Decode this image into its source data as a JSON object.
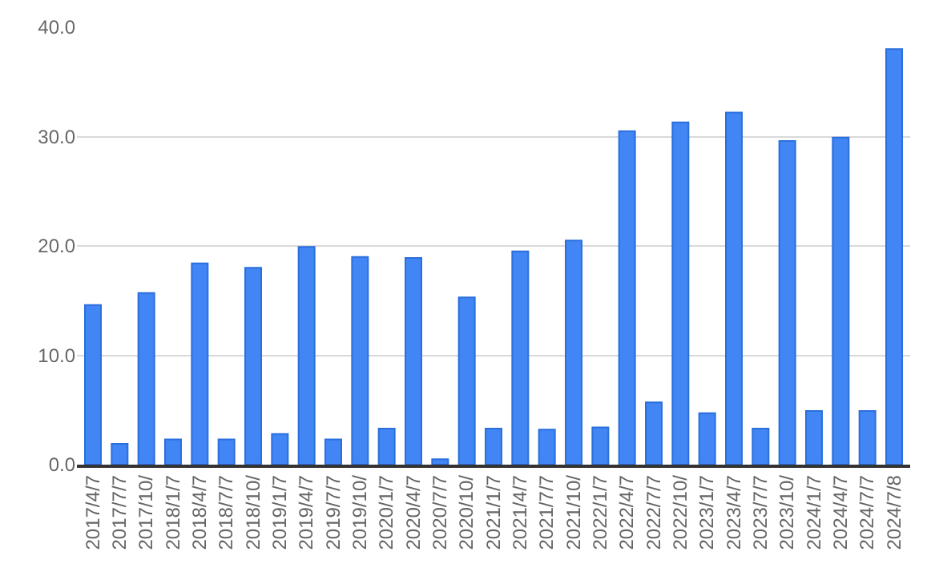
{
  "chart_data": {
    "type": "bar",
    "categories": [
      "2017/4/7",
      "2017/7/7",
      "2017/10/",
      "2018/1/7",
      "2018/4/7",
      "2018/7/7",
      "2018/10/",
      "2019/1/7",
      "2019/4/7",
      "2019/7/7",
      "2019/10/",
      "2020/1/7",
      "2020/4/7",
      "2020/7/7",
      "2020/10/",
      "2021/1/7",
      "2021/4/7",
      "2021/7/7",
      "2021/10/",
      "2022/1/7",
      "2022/4/7",
      "2022/7/7",
      "2022/10/",
      "2023/1/7",
      "2023/4/7",
      "2023/7/7",
      "2023/10/",
      "2024/1/7",
      "2024/4/7",
      "2024/7/7",
      "2024/7/8"
    ],
    "values": [
      14.6,
      1.9,
      15.7,
      2.3,
      18.4,
      2.3,
      18.0,
      2.8,
      19.9,
      2.3,
      19.0,
      3.3,
      18.9,
      0.5,
      15.3,
      3.3,
      19.5,
      3.2,
      20.5,
      3.4,
      30.5,
      5.7,
      31.3,
      4.7,
      32.2,
      3.3,
      29.6,
      4.9,
      29.9,
      4.9,
      38.0
    ],
    "color": "#4285f4",
    "ylim": [
      0,
      40
    ],
    "yticks": [
      {
        "value": 0,
        "label": "0.0"
      },
      {
        "value": 10,
        "label": "10.0"
      },
      {
        "value": 20,
        "label": "20.0"
      },
      {
        "value": 30,
        "label": "30.0"
      },
      {
        "value": 40,
        "label": "40.0"
      }
    ],
    "grid": "y"
  }
}
